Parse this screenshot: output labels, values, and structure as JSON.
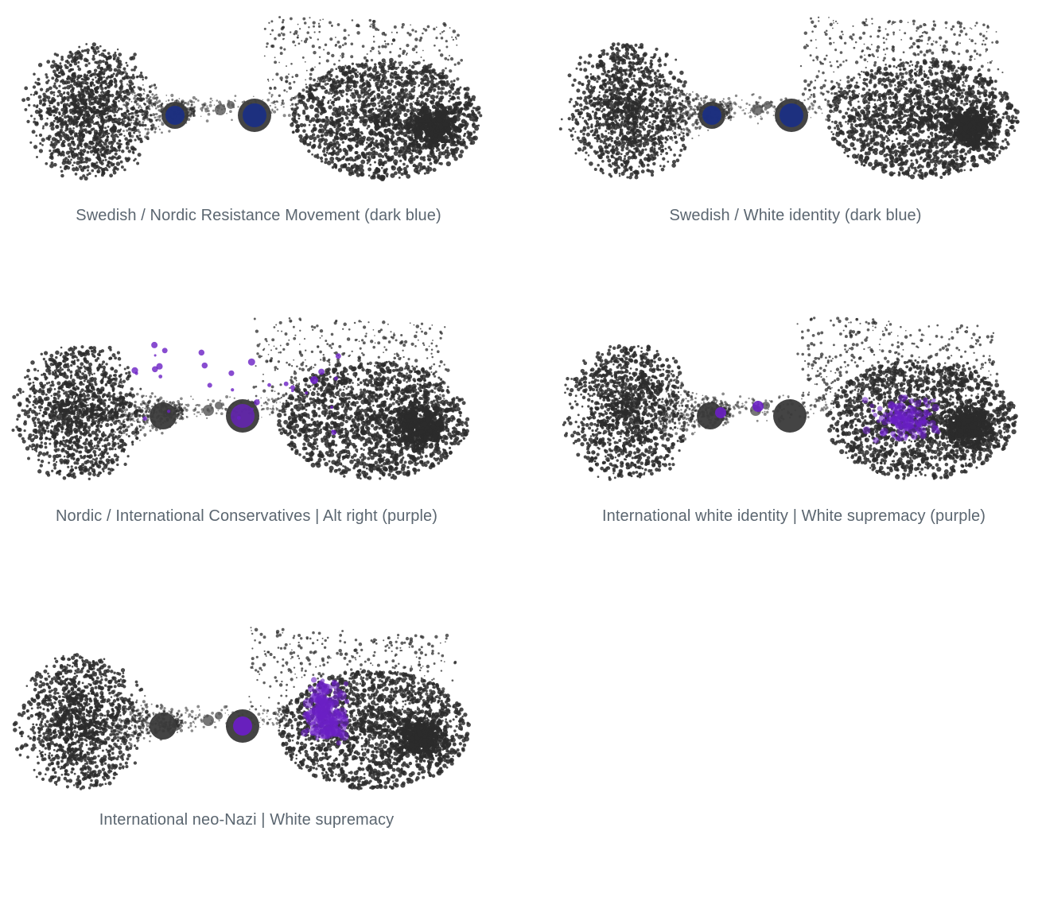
{
  "colors": {
    "background": "#ffffff",
    "points": "#2b2b2b",
    "caption": "#5b6670",
    "dark_blue": "#1a2f86",
    "purple": "#6a1fc4"
  },
  "panels": [
    {
      "caption": "Swedish / Nordic Resistance Movement (dark blue)",
      "highlight": "dark_blue",
      "pattern": "hubs"
    },
    {
      "caption": "Swedish / White identity (dark blue)",
      "highlight": "dark_blue",
      "pattern": "hubs"
    },
    {
      "caption": "Nordic / International Conservatives | Alt right (purple)",
      "highlight": "purple",
      "pattern": "hubs_scattered"
    },
    {
      "caption": "International white identity | White supremacy (purple)",
      "highlight": "purple",
      "pattern": "right_cluster"
    },
    {
      "caption": "International neo-Nazi | White supremacy",
      "highlight": "purple",
      "pattern": "center_cluster"
    }
  ]
}
